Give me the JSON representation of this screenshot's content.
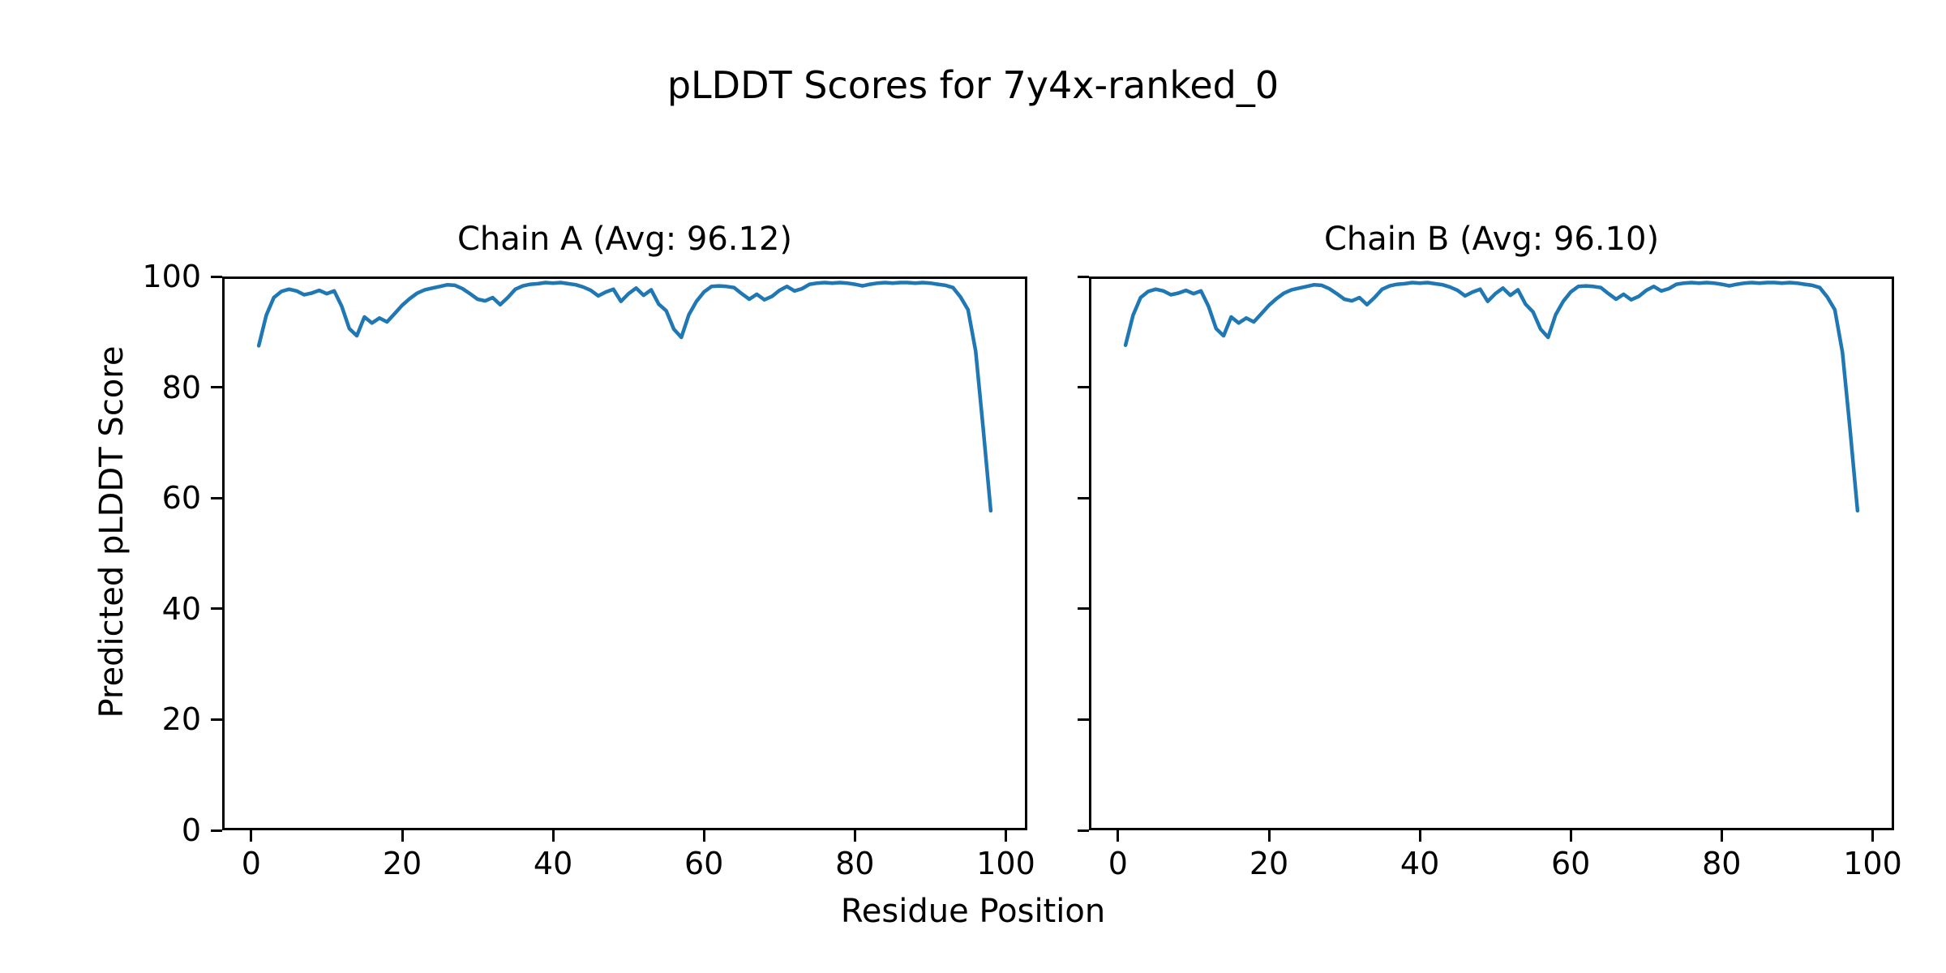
{
  "figure": {
    "background": "#ffffff",
    "text_color": "#000000"
  },
  "chart_data": {
    "type": "line",
    "suptitle": "pLDDT Scores for 7y4x-ranked_0",
    "xlabel": "Residue Position",
    "ylabel": "Predicted pLDDT Score",
    "x_ticks": [
      0,
      20,
      40,
      60,
      80,
      100
    ],
    "y_ticks": [
      0,
      20,
      40,
      60,
      80,
      100
    ],
    "xlim": [
      -3.85,
      102.85
    ],
    "ylim": [
      0,
      100
    ],
    "grid": false,
    "legend": "none",
    "line_color": "#1f77b4",
    "axis_color": "#000000",
    "x_start": 1,
    "subplots": [
      {
        "title": "Chain A (Avg: 96.12)",
        "series_name": "Chain A",
        "avg": 96.12,
        "show_y_tick_labels": true
      },
      {
        "title": "Chain B (Avg: 96.10)",
        "series_name": "Chain B",
        "avg": 96.1,
        "show_y_tick_labels": false
      }
    ],
    "series": [
      {
        "name": "Chain A",
        "values": [
          87.5,
          93.0,
          96.2,
          97.3,
          97.7,
          97.4,
          96.7,
          97.0,
          97.5,
          96.9,
          97.4,
          94.6,
          90.6,
          89.3,
          92.7,
          91.6,
          92.5,
          91.8,
          93.3,
          94.8,
          96.0,
          97.0,
          97.6,
          97.9,
          98.2,
          98.5,
          98.4,
          97.8,
          96.9,
          95.9,
          95.6,
          96.2,
          94.9,
          96.2,
          97.7,
          98.3,
          98.6,
          98.7,
          98.9,
          98.8,
          98.9,
          98.7,
          98.5,
          98.1,
          97.5,
          96.5,
          97.2,
          97.7,
          95.5,
          96.9,
          97.9,
          96.6,
          97.6,
          95.0,
          93.8,
          90.5,
          89.0,
          93.1,
          95.5,
          97.2,
          98.2,
          98.3,
          98.2,
          98.0,
          96.9,
          95.9,
          96.8,
          95.8,
          96.4,
          97.5,
          98.2,
          97.4,
          97.8,
          98.6,
          98.8,
          98.9,
          98.8,
          98.9,
          98.8,
          98.6,
          98.3,
          98.6,
          98.8,
          98.9,
          98.8,
          98.9,
          98.9,
          98.8,
          98.9,
          98.8,
          98.6,
          98.4,
          98.0,
          96.3,
          94.0,
          86.5,
          72.5,
          57.7
        ]
      },
      {
        "name": "Chain B",
        "values": [
          87.6,
          93.0,
          96.2,
          97.3,
          97.7,
          97.4,
          96.7,
          97.0,
          97.5,
          96.9,
          97.4,
          94.6,
          90.6,
          89.3,
          92.7,
          91.6,
          92.5,
          91.8,
          93.3,
          94.8,
          96.0,
          97.0,
          97.6,
          97.9,
          98.2,
          98.5,
          98.4,
          97.8,
          96.9,
          95.9,
          95.6,
          96.2,
          94.9,
          96.2,
          97.7,
          98.3,
          98.6,
          98.7,
          98.9,
          98.8,
          98.9,
          98.7,
          98.5,
          98.1,
          97.5,
          96.5,
          97.2,
          97.7,
          95.5,
          96.9,
          97.9,
          96.6,
          97.6,
          95.0,
          93.6,
          90.5,
          89.0,
          93.1,
          95.5,
          97.2,
          98.2,
          98.3,
          98.2,
          98.0,
          96.9,
          95.9,
          96.8,
          95.8,
          96.4,
          97.5,
          98.2,
          97.4,
          97.8,
          98.6,
          98.8,
          98.9,
          98.8,
          98.9,
          98.8,
          98.6,
          98.3,
          98.6,
          98.8,
          98.9,
          98.8,
          98.9,
          98.9,
          98.8,
          98.9,
          98.8,
          98.6,
          98.4,
          98.0,
          96.3,
          94.0,
          86.3,
          72.5,
          57.7
        ]
      }
    ]
  }
}
